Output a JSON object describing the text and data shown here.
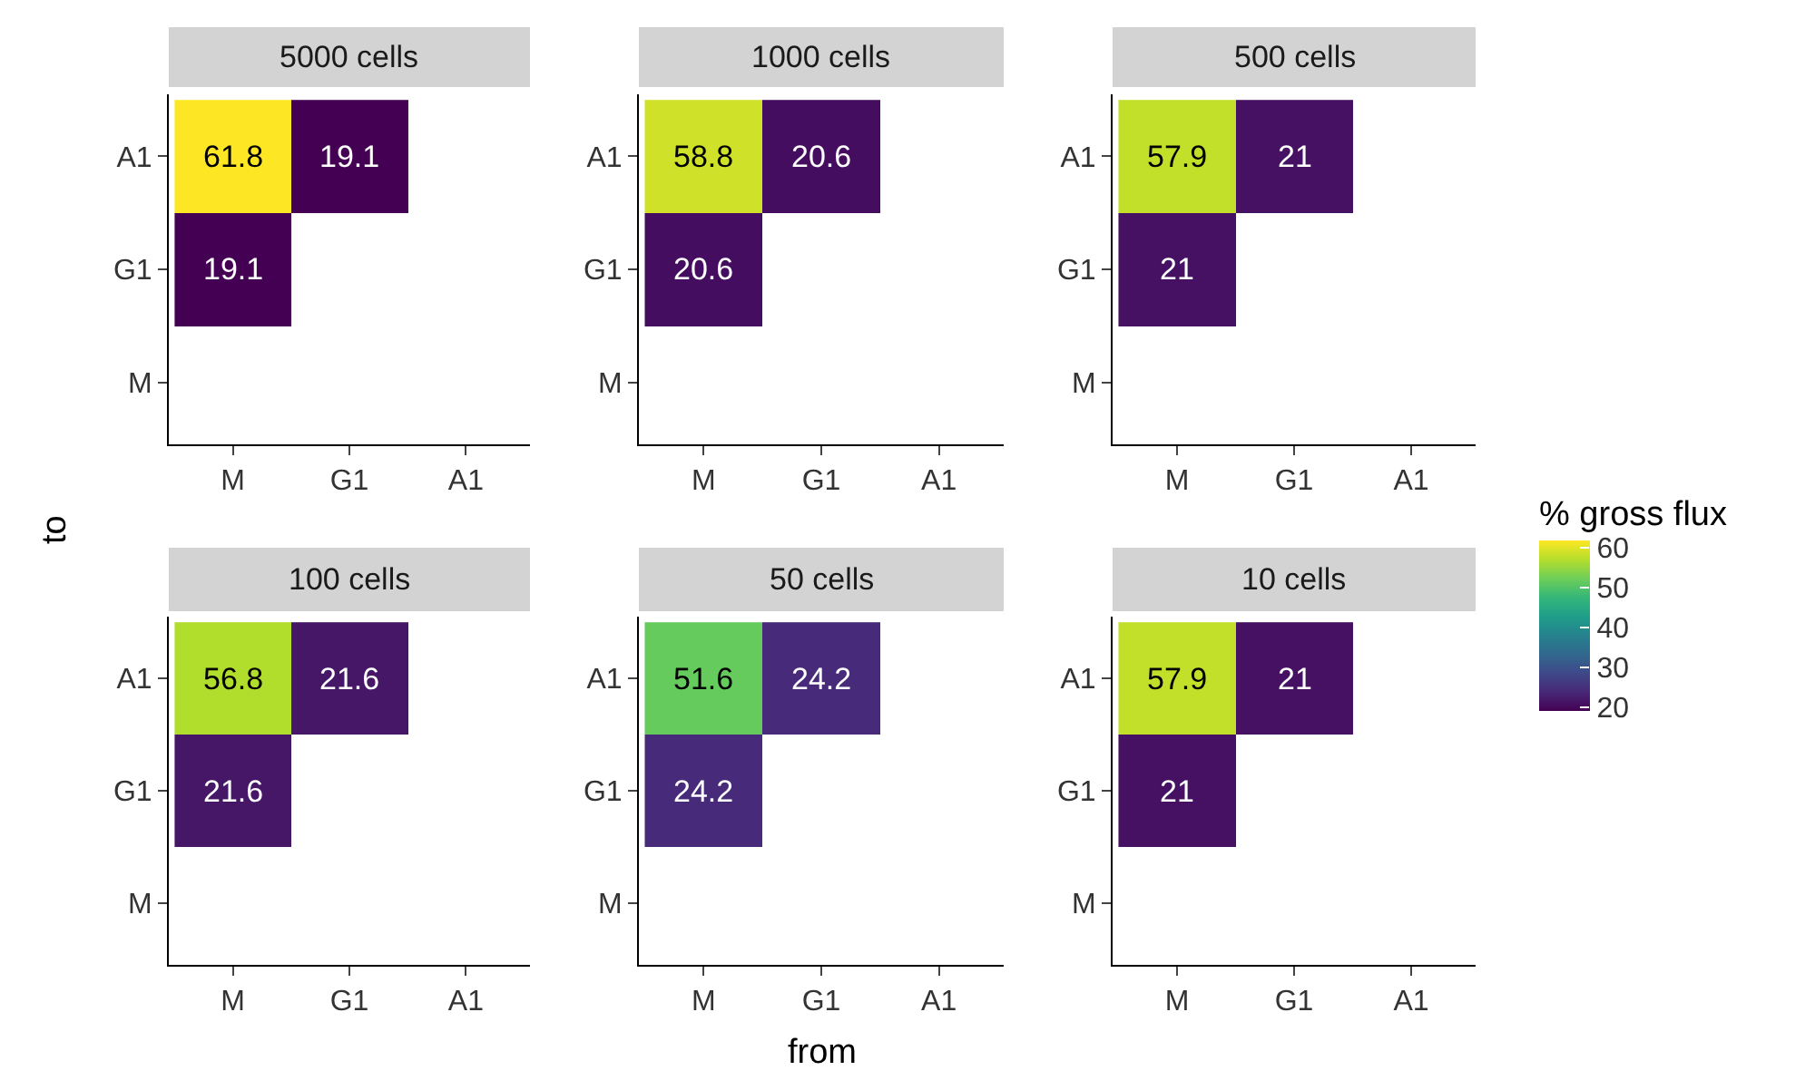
{
  "chart_data": [
    {
      "type": "heatmap",
      "title": "5000 cells",
      "ylabel": "to",
      "clabel": "% gross flux",
      "clim": [
        19.1,
        61.8
      ],
      "cticks": [
        20,
        30,
        40,
        50,
        60
      ],
      "categories": [
        "M",
        "G1",
        "A1"
      ],
      "y_categories": [
        "A1",
        "G1",
        "M"
      ],
      "cells": [
        [
          61.8,
          19.1,
          null
        ],
        [
          19.1,
          null,
          null
        ],
        [
          null,
          null,
          null
        ]
      ],
      "data_labels": true
    },
    {
      "type": "heatmap",
      "title": "1000 cells",
      "categories": [
        "M",
        "G1",
        "A1"
      ],
      "y_categories": [
        "A1",
        "G1",
        "M"
      ],
      "cells": [
        [
          58.8,
          20.6,
          null
        ],
        [
          20.6,
          null,
          null
        ],
        [
          null,
          null,
          null
        ]
      ],
      "data_labels": true
    },
    {
      "type": "heatmap",
      "title": "500 cells",
      "categories": [
        "M",
        "G1",
        "A1"
      ],
      "y_categories": [
        "A1",
        "G1",
        "M"
      ],
      "cells": [
        [
          57.9,
          21,
          null
        ],
        [
          21,
          null,
          null
        ],
        [
          null,
          null,
          null
        ]
      ],
      "data_labels": true
    },
    {
      "type": "heatmap",
      "title": "100 cells",
      "categories": [
        "M",
        "G1",
        "A1"
      ],
      "y_categories": [
        "A1",
        "G1",
        "M"
      ],
      "cells": [
        [
          56.8,
          21.6,
          null
        ],
        [
          21.6,
          null,
          null
        ],
        [
          null,
          null,
          null
        ]
      ],
      "data_labels": true
    },
    {
      "type": "heatmap",
      "title": "50 cells",
      "xlabel": "from",
      "categories": [
        "M",
        "G1",
        "A1"
      ],
      "y_categories": [
        "A1",
        "G1",
        "M"
      ],
      "cells": [
        [
          51.6,
          24.2,
          null
        ],
        [
          24.2,
          null,
          null
        ],
        [
          null,
          null,
          null
        ]
      ],
      "data_labels": true
    },
    {
      "type": "heatmap",
      "title": "10 cells",
      "categories": [
        "M",
        "G1",
        "A1"
      ],
      "y_categories": [
        "A1",
        "G1",
        "M"
      ],
      "cells": [
        [
          57.9,
          21,
          null
        ],
        [
          21,
          null,
          null
        ],
        [
          null,
          null,
          null
        ]
      ],
      "data_labels": true
    }
  ]
}
